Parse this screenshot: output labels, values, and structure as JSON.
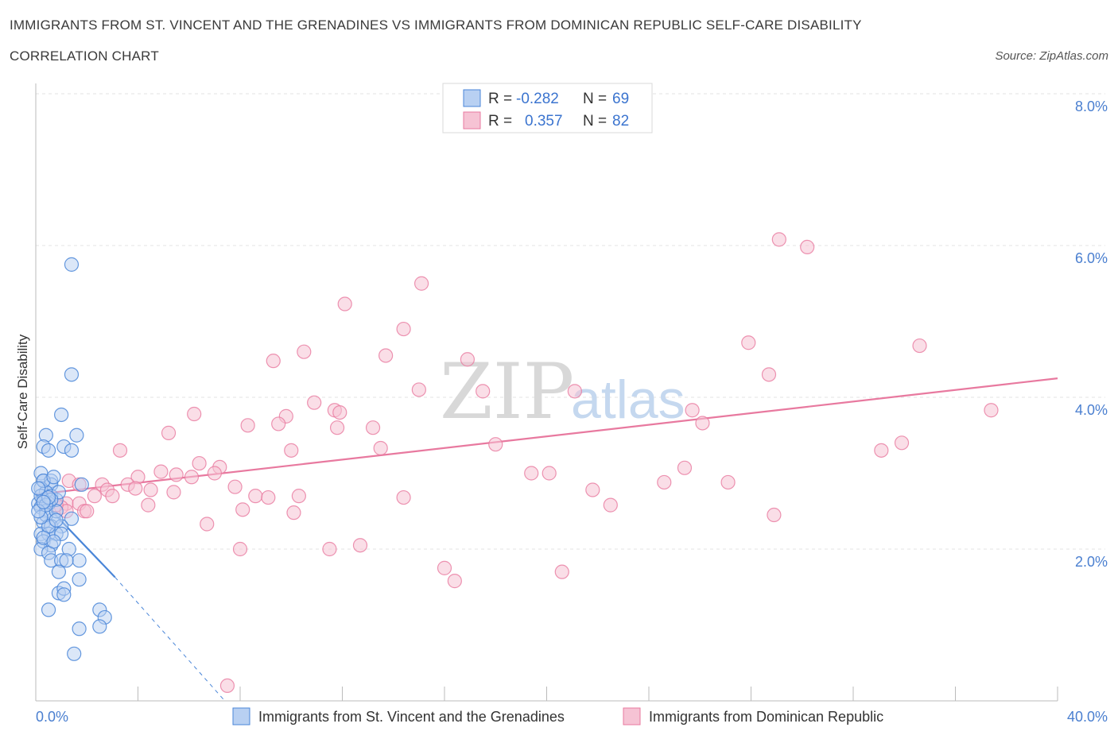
{
  "header": {
    "title_line1": "IMMIGRANTS FROM ST. VINCENT AND THE GRENADINES VS IMMIGRANTS FROM DOMINICAN REPUBLIC SELF-CARE DISABILITY",
    "title_line2": "CORRELATION CHART",
    "source": "Source: ZipAtlas.com"
  },
  "legend": {
    "r_label": "R =",
    "n_label": "N =",
    "series1_r": "-0.282",
    "series1_n": "69",
    "series2_r": "0.357",
    "series2_n": "82"
  },
  "watermark": {
    "zip": "ZIP",
    "atlas": "atlas"
  },
  "chart_data": {
    "type": "scatter",
    "title": "IMMIGRANTS FROM ST. VINCENT AND THE GRENADINES VS IMMIGRANTS FROM DOMINICAN REPUBLIC SELF-CARE DISABILITY CORRELATION CHART",
    "xlabel": "",
    "ylabel": "Self-Care Disability",
    "xlim": [
      0,
      40
    ],
    "ylim": [
      0,
      8
    ],
    "x_tick_labels": [
      "0.0%",
      "40.0%"
    ],
    "y_ticks": [
      2,
      4,
      6,
      8
    ],
    "y_tick_labels": [
      "2.0%",
      "4.0%",
      "6.0%",
      "8.0%"
    ],
    "grid": true,
    "legend_position": "top-center",
    "colors": {
      "series1": "#4a86d8",
      "series2": "#e8799f",
      "series1_fill": "#b8d0f2",
      "series2_fill": "#f6c3d4"
    },
    "series": [
      {
        "name": "Immigrants from St. Vincent and the Grenadines",
        "R": -0.282,
        "N": 69,
        "trend": {
          "x": [
            0.0,
            3.1
          ],
          "y": [
            2.72,
            1.63
          ],
          "dashed_to": [
            7.4,
            0.0
          ]
        },
        "points": [
          [
            1.4,
            5.75
          ],
          [
            1.4,
            4.3
          ],
          [
            1.0,
            3.77
          ],
          [
            0.4,
            3.5
          ],
          [
            1.6,
            3.5
          ],
          [
            0.3,
            3.35
          ],
          [
            0.5,
            3.3
          ],
          [
            1.1,
            3.35
          ],
          [
            1.4,
            3.3
          ],
          [
            0.2,
            3.0
          ],
          [
            0.3,
            2.9
          ],
          [
            0.6,
            2.9
          ],
          [
            0.6,
            2.85
          ],
          [
            1.8,
            2.85
          ],
          [
            0.2,
            2.8
          ],
          [
            0.4,
            2.75
          ],
          [
            0.6,
            2.7
          ],
          [
            0.8,
            2.65
          ],
          [
            0.3,
            2.65
          ],
          [
            0.1,
            2.6
          ],
          [
            0.5,
            2.6
          ],
          [
            0.2,
            2.55
          ],
          [
            0.4,
            2.5
          ],
          [
            0.7,
            2.4
          ],
          [
            1.4,
            2.4
          ],
          [
            0.3,
            2.35
          ],
          [
            0.6,
            2.3
          ],
          [
            1.0,
            2.3
          ],
          [
            0.2,
            2.2
          ],
          [
            0.5,
            2.2
          ],
          [
            0.8,
            2.2
          ],
          [
            0.3,
            2.1
          ],
          [
            0.6,
            2.05
          ],
          [
            0.2,
            2.0
          ],
          [
            1.3,
            2.0
          ],
          [
            0.5,
            1.95
          ],
          [
            0.6,
            1.85
          ],
          [
            1.7,
            1.85
          ],
          [
            1.0,
            1.85
          ],
          [
            1.2,
            1.85
          ],
          [
            0.9,
            1.7
          ],
          [
            1.7,
            1.6
          ],
          [
            0.9,
            1.42
          ],
          [
            1.1,
            1.48
          ],
          [
            1.1,
            1.4
          ],
          [
            0.5,
            1.2
          ],
          [
            2.5,
            1.2
          ],
          [
            2.7,
            1.1
          ],
          [
            1.7,
            0.95
          ],
          [
            2.5,
            0.98
          ],
          [
            1.5,
            0.62
          ],
          [
            0.2,
            2.7
          ],
          [
            0.4,
            2.45
          ],
          [
            0.8,
            2.5
          ],
          [
            0.3,
            2.9
          ],
          [
            0.7,
            2.95
          ],
          [
            0.5,
            2.3
          ],
          [
            0.9,
            2.75
          ],
          [
            0.1,
            2.8
          ],
          [
            0.3,
            2.15
          ],
          [
            0.6,
            2.65
          ],
          [
            0.2,
            2.42
          ],
          [
            0.4,
            2.58
          ],
          [
            0.8,
            2.38
          ],
          [
            0.1,
            2.5
          ],
          [
            0.5,
            2.68
          ],
          [
            1.0,
            2.2
          ],
          [
            0.7,
            2.1
          ],
          [
            0.3,
            2.62
          ]
        ]
      },
      {
        "name": "Immigrants from Dominican Republic",
        "R": 0.357,
        "N": 82,
        "trend": {
          "x": [
            0.0,
            40.0
          ],
          "y": [
            2.72,
            4.25
          ]
        },
        "points": [
          [
            29.1,
            6.08
          ],
          [
            30.2,
            5.98
          ],
          [
            15.1,
            5.5
          ],
          [
            12.1,
            5.23
          ],
          [
            14.4,
            4.9
          ],
          [
            27.9,
            4.72
          ],
          [
            34.6,
            4.68
          ],
          [
            10.5,
            4.6
          ],
          [
            13.7,
            4.55
          ],
          [
            16.9,
            4.5
          ],
          [
            9.3,
            4.48
          ],
          [
            28.7,
            4.3
          ],
          [
            15.0,
            4.1
          ],
          [
            17.5,
            4.08
          ],
          [
            21.1,
            4.08
          ],
          [
            11.7,
            3.83
          ],
          [
            11.9,
            3.8
          ],
          [
            6.2,
            3.78
          ],
          [
            10.9,
            3.93
          ],
          [
            8.3,
            3.63
          ],
          [
            25.7,
            3.83
          ],
          [
            9.8,
            3.75
          ],
          [
            37.4,
            3.83
          ],
          [
            26.1,
            3.66
          ],
          [
            9.5,
            3.65
          ],
          [
            11.8,
            3.6
          ],
          [
            13.2,
            3.6
          ],
          [
            5.2,
            3.53
          ],
          [
            18.0,
            3.38
          ],
          [
            33.9,
            3.4
          ],
          [
            13.5,
            3.33
          ],
          [
            10.0,
            3.3
          ],
          [
            3.3,
            3.3
          ],
          [
            33.1,
            3.3
          ],
          [
            6.4,
            3.13
          ],
          [
            7.2,
            3.08
          ],
          [
            25.4,
            3.07
          ],
          [
            4.9,
            3.02
          ],
          [
            7.0,
            3.0
          ],
          [
            5.5,
            2.98
          ],
          [
            6.1,
            2.95
          ],
          [
            19.4,
            3.0
          ],
          [
            20.1,
            3.0
          ],
          [
            4.0,
            2.95
          ],
          [
            2.6,
            2.85
          ],
          [
            3.6,
            2.85
          ],
          [
            24.6,
            2.88
          ],
          [
            27.1,
            2.88
          ],
          [
            1.3,
            2.9
          ],
          [
            1.7,
            2.85
          ],
          [
            7.8,
            2.82
          ],
          [
            3.9,
            2.8
          ],
          [
            4.5,
            2.78
          ],
          [
            2.8,
            2.78
          ],
          [
            5.4,
            2.75
          ],
          [
            21.8,
            2.78
          ],
          [
            2.3,
            2.7
          ],
          [
            3.0,
            2.7
          ],
          [
            8.6,
            2.7
          ],
          [
            9.1,
            2.68
          ],
          [
            10.3,
            2.7
          ],
          [
            14.4,
            2.68
          ],
          [
            1.2,
            2.6
          ],
          [
            1.7,
            2.6
          ],
          [
            4.4,
            2.58
          ],
          [
            22.5,
            2.58
          ],
          [
            1.0,
            2.55
          ],
          [
            1.2,
            2.5
          ],
          [
            8.1,
            2.52
          ],
          [
            0.8,
            2.58
          ],
          [
            1.9,
            2.5
          ],
          [
            2.0,
            2.5
          ],
          [
            10.1,
            2.48
          ],
          [
            28.9,
            2.45
          ],
          [
            6.7,
            2.33
          ],
          [
            8.0,
            2.0
          ],
          [
            11.5,
            2.0
          ],
          [
            12.7,
            2.05
          ],
          [
            16.0,
            1.75
          ],
          [
            20.6,
            1.7
          ],
          [
            16.4,
            1.58
          ],
          [
            7.5,
            0.2
          ]
        ]
      }
    ]
  },
  "bottom_legend": {
    "series1_label": "Immigrants from St. Vincent and the Grenadines",
    "series2_label": "Immigrants from Dominican Republic"
  }
}
